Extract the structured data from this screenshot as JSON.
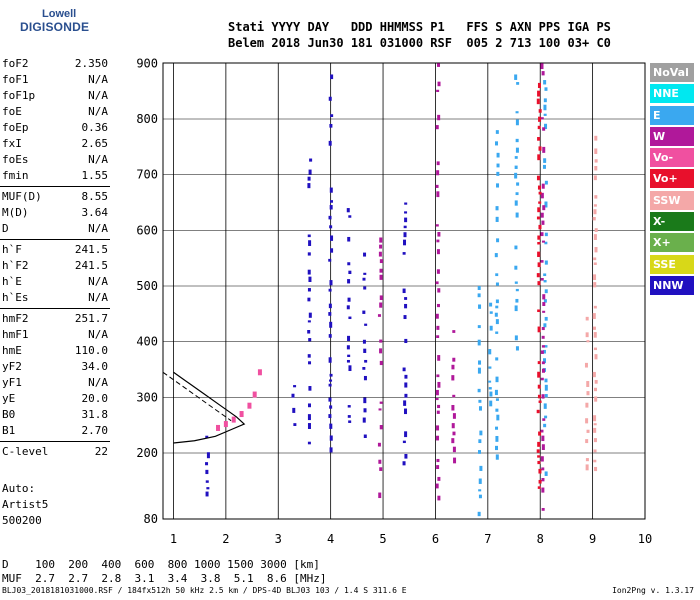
{
  "logo": {
    "line1": "Lowell",
    "line2": "DIGISONDE"
  },
  "header": {
    "line1": "Stati YYYY DAY   DDD HHMMSS P1   FFS S AXN PPS IGA PS",
    "line2": "Belem 2018 Jun30 181 031000 RSF  005 2 713 100 03+ C0"
  },
  "params": [
    {
      "n": "foF2",
      "v": "2.350"
    },
    {
      "n": "foF1",
      "v": "N/A"
    },
    {
      "n": "foF1p",
      "v": "N/A"
    },
    {
      "n": "foE",
      "v": "N/A"
    },
    {
      "n": "foEp",
      "v": "0.36"
    },
    {
      "n": "fxI",
      "v": "2.65"
    },
    {
      "n": "foEs",
      "v": "N/A"
    },
    {
      "n": "fmin",
      "v": "1.55"
    },
    {
      "n": "MUF(D)",
      "v": "8.55"
    },
    {
      "n": "M(D)",
      "v": "3.64"
    },
    {
      "n": "D",
      "v": "N/A"
    },
    {
      "n": "h`F",
      "v": "241.5"
    },
    {
      "n": "h`F2",
      "v": "241.5"
    },
    {
      "n": "h`E",
      "v": "N/A"
    },
    {
      "n": "h`Es",
      "v": "N/A"
    },
    {
      "n": "hmF2",
      "v": "251.7"
    },
    {
      "n": "hmF1",
      "v": "N/A"
    },
    {
      "n": "hmE",
      "v": "110.0"
    },
    {
      "n": "yF2",
      "v": "34.0"
    },
    {
      "n": "yF1",
      "v": "N/A"
    },
    {
      "n": "yE",
      "v": "20.0"
    },
    {
      "n": "B0",
      "v": "31.8"
    },
    {
      "n": "B1",
      "v": "2.70"
    },
    {
      "n": "C-level",
      "v": "22"
    }
  ],
  "auto": {
    "line1": "Auto:",
    "line2": "Artist5",
    "line3": "500200"
  },
  "legend": [
    {
      "label": "NoVal",
      "color": "#a0a0a0"
    },
    {
      "label": "NNE",
      "color": "#00e8f0"
    },
    {
      "label": "E",
      "color": "#3aa8f0"
    },
    {
      "label": "W",
      "color": "#b0189a"
    },
    {
      "label": "Vo-",
      "color": "#f050a0"
    },
    {
      "label": "Vo+",
      "color": "#e8102c"
    },
    {
      "label": "SSW",
      "color": "#f4a8a8"
    },
    {
      "label": "X-",
      "color": "#1a7a1a"
    },
    {
      "label": "X+",
      "color": "#6ab04c"
    },
    {
      "label": "SSE",
      "color": "#d8d818"
    },
    {
      "label": "NNW",
      "color": "#2010c0"
    }
  ],
  "muf_table": {
    "line1": "D    100  200  400  600  800 1000 1500 3000 [km]",
    "line2": "MUF  2.7  2.7  2.8  3.1  3.4  3.8  5.1  8.6 [MHz]"
  },
  "footer": {
    "left": "BLJ03_2018181031000.RSF / 184fx512h 50 kHz 2.5 km / DPS-4D BLJ03 103 / 1.4 S 311.6 E",
    "right": "Ion2Png v. 1.3.17"
  },
  "chart_data": {
    "type": "scatter",
    "xlim": [
      0.8,
      10
    ],
    "ylim": [
      80,
      900
    ],
    "x_ticks": [
      1,
      2,
      3,
      4,
      5,
      6,
      7,
      8,
      9,
      10
    ],
    "y_ticks": [
      80,
      200,
      300,
      400,
      500,
      600,
      700,
      800,
      900
    ],
    "grid": true,
    "legend_position": "right",
    "traces": [
      {
        "series": "E",
        "x": 6.85,
        "y": [
          80,
          500
        ]
      },
      {
        "series": "E",
        "x": 7.05,
        "y": [
          240,
          470
        ]
      },
      {
        "series": "E",
        "x": 7.18,
        "y": [
          180,
          780
        ]
      },
      {
        "series": "E",
        "x": 8.1,
        "y": [
          150,
          870
        ]
      },
      {
        "series": "E",
        "x": 7.55,
        "y": [
          380,
          880
        ]
      },
      {
        "series": "W",
        "x": 6.05,
        "y": [
          120,
          900
        ]
      },
      {
        "series": "W",
        "x": 6.35,
        "y": [
          150,
          450
        ]
      },
      {
        "series": "W",
        "x": 8.05,
        "y": [
          90,
          900
        ]
      },
      {
        "series": "W",
        "x": 4.95,
        "y": [
          120,
          600
        ]
      },
      {
        "series": "NNW",
        "x": 3.6,
        "y": [
          220,
          750
        ]
      },
      {
        "series": "NNW",
        "x": 4.35,
        "y": [
          250,
          640
        ]
      },
      {
        "series": "NNW",
        "x": 4.65,
        "y": [
          200,
          560
        ]
      },
      {
        "series": "NNW",
        "x": 5.42,
        "y": [
          180,
          650
        ]
      },
      {
        "series": "NNW",
        "x": 4.0,
        "y": [
          200,
          880
        ]
      },
      {
        "series": "NNW",
        "x": 3.3,
        "y": [
          240,
          360
        ]
      },
      {
        "series": "NNW",
        "x": 1.65,
        "y": [
          100,
          240
        ]
      },
      {
        "series": "SSW",
        "x": 8.9,
        "y": [
          160,
          460
        ]
      },
      {
        "series": "SSW",
        "x": 9.05,
        "y": [
          170,
          800
        ]
      },
      {
        "series": "Vo+",
        "x": 7.98,
        "y": [
          80,
          880
        ]
      }
    ],
    "trace_f2": {
      "series": "Vo-",
      "x": [
        1.85,
        2.0,
        2.15,
        2.3,
        2.45,
        2.55,
        2.65
      ],
      "y": [
        245,
        252,
        260,
        270,
        285,
        305,
        345
      ]
    },
    "profile": {
      "x": [
        1.0,
        1.4,
        1.8,
        2.1,
        2.35,
        2.2,
        1.9,
        1.6,
        1.3,
        1.0
      ],
      "y": [
        218,
        222,
        230,
        242,
        252,
        265,
        285,
        305,
        325,
        345
      ]
    }
  }
}
